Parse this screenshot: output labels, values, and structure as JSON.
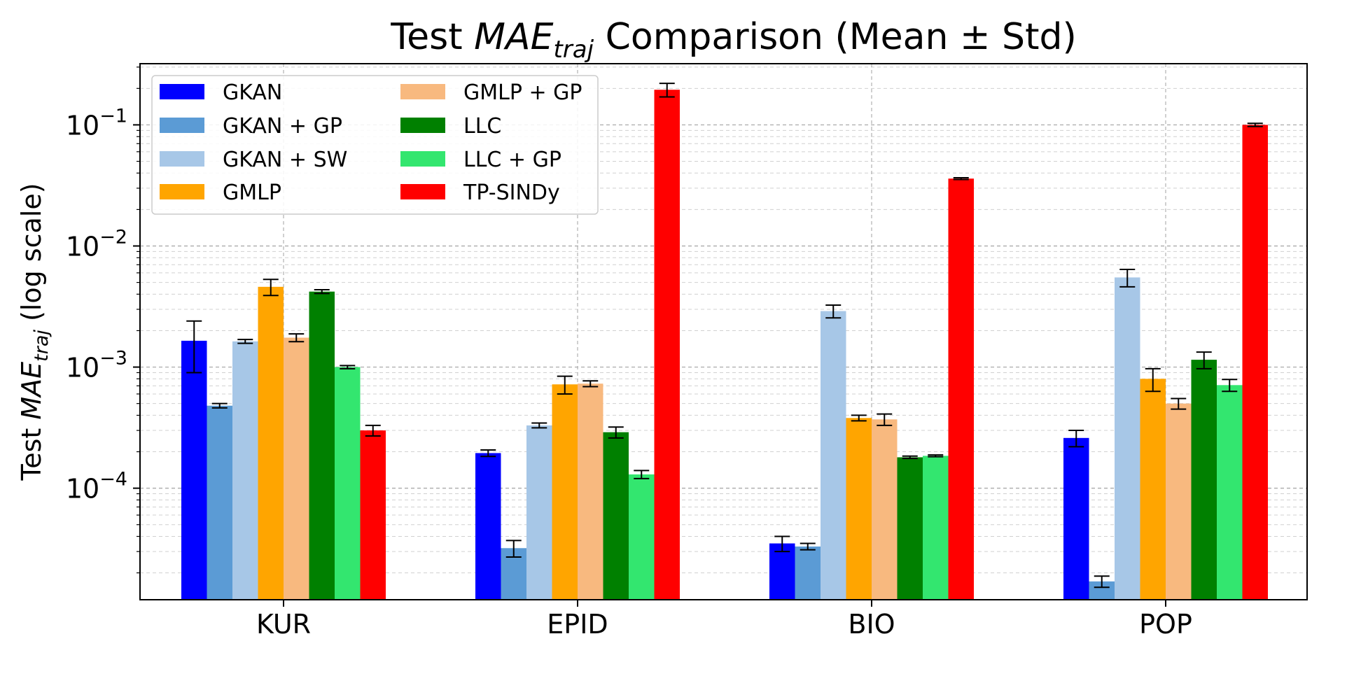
{
  "chart_data": {
    "type": "bar",
    "title": {
      "prefix": "Test ",
      "main": "MAE",
      "sub": "traj",
      "suffix": " Comparison (Mean ± Std)"
    },
    "ylabel": {
      "prefix": "Test ",
      "main": "MAE",
      "sub": "traj",
      "suffix": " (log scale)"
    },
    "y_scale": "log",
    "ylim": [
      1.2e-05,
      0.32
    ],
    "grid": true,
    "legend_position": "top-left",
    "y_ticks": [
      {
        "value": 0.0001,
        "base": "10",
        "exp": "−4"
      },
      {
        "value": 0.001,
        "base": "10",
        "exp": "−3"
      },
      {
        "value": 0.01,
        "base": "10",
        "exp": "−2"
      },
      {
        "value": 0.1,
        "base": "10",
        "exp": "−1"
      }
    ],
    "categories": [
      "KUR",
      "EPID",
      "BIO",
      "POP"
    ],
    "series": [
      {
        "name": "GKAN",
        "color": "#0000ff",
        "values": [
          0.00165,
          0.000195,
          3.5e-05,
          0.00026
        ],
        "errors": [
          0.00075,
          1.2e-05,
          5e-06,
          4e-05
        ]
      },
      {
        "name": "GKAN + GP",
        "color": "#5b9bd5",
        "values": [
          0.00048,
          3.2e-05,
          3.3e-05,
          1.7e-05
        ],
        "errors": [
          2e-05,
          5e-06,
          2e-06,
          1.8e-06
        ]
      },
      {
        "name": "GKAN + SW",
        "color": "#a7c7e7",
        "values": [
          0.00163,
          0.00033,
          0.0029,
          0.0055
        ],
        "errors": [
          6e-05,
          1.5e-05,
          0.00035,
          0.0009
        ]
      },
      {
        "name": "GMLP",
        "color": "#ffa500",
        "values": [
          0.0046,
          0.00072,
          0.00038,
          0.0008
        ],
        "errors": [
          0.0007,
          0.00012,
          2e-05,
          0.00017
        ]
      },
      {
        "name": "GMLP + GP",
        "color": "#f8b97f",
        "values": [
          0.00175,
          0.00073,
          0.00037,
          0.0005
        ],
        "errors": [
          0.00013,
          4e-05,
          4e-05,
          5e-05
        ]
      },
      {
        "name": "LLC",
        "color": "#008000",
        "values": [
          0.0042,
          0.00029,
          0.00018,
          0.00115
        ],
        "errors": [
          0.00015,
          3e-05,
          4e-06,
          0.00018
        ]
      },
      {
        "name": "LLC + GP",
        "color": "#33e66f",
        "values": [
          0.001,
          0.00013,
          0.000185,
          0.00071
        ],
        "errors": [
          3e-05,
          1e-05,
          3e-06,
          8e-05
        ]
      },
      {
        "name": "TP-SINDy",
        "color": "#ff0000",
        "values": [
          0.0003,
          0.195,
          0.036,
          0.1
        ],
        "errors": [
          3e-05,
          0.025,
          0.0006,
          0.003
        ]
      }
    ]
  }
}
